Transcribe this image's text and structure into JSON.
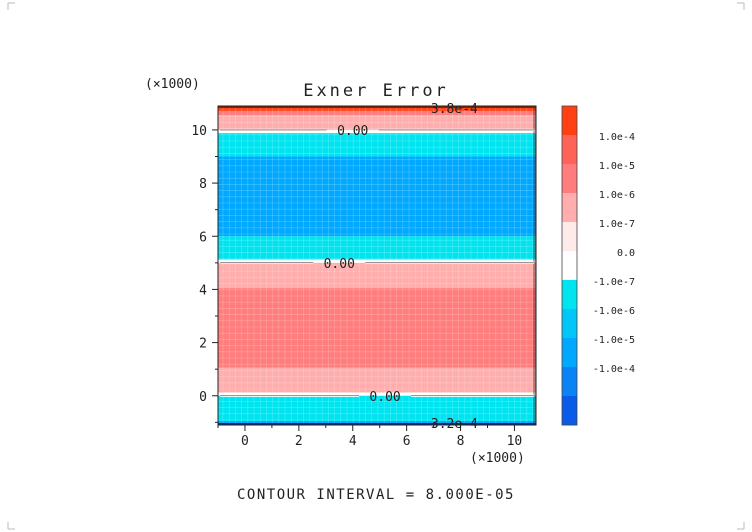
{
  "chart_data": {
    "type": "contour",
    "title": "Exner Error",
    "multiplier_y": "(×1000)",
    "multiplier_x": "(×1000)",
    "footer": "CONTOUR INTERVAL = 8.000E-05",
    "xlim": [
      -1.0,
      10.8
    ],
    "ylim": [
      -1.1,
      10.9
    ],
    "xticks": [
      0,
      2,
      4,
      6,
      8,
      10
    ],
    "yticks": [
      0,
      2,
      4,
      6,
      8,
      10
    ],
    "bands": [
      {
        "y0": 10.7,
        "y1": 10.9,
        "color": "#ff4013"
      },
      {
        "y0": 10.55,
        "y1": 10.7,
        "color": "#ff7d7c"
      },
      {
        "y0": 10.0,
        "y1": 10.55,
        "color": "#ffadad"
      },
      {
        "y0": 9.88,
        "y1": 10.0,
        "color": "#ffffff"
      },
      {
        "y0": 9.0,
        "y1": 9.88,
        "color": "#00e4f0"
      },
      {
        "y0": 6.0,
        "y1": 9.0,
        "color": "#00a9ff"
      },
      {
        "y0": 5.12,
        "y1": 6.0,
        "color": "#00e4f0"
      },
      {
        "y0": 5.0,
        "y1": 5.12,
        "color": "#ffffff"
      },
      {
        "y0": 4.05,
        "y1": 5.0,
        "color": "#ffadad"
      },
      {
        "y0": 1.05,
        "y1": 4.05,
        "color": "#ff7d7c"
      },
      {
        "y0": 0.12,
        "y1": 1.05,
        "color": "#ffadad"
      },
      {
        "y0": 0.0,
        "y1": 0.12,
        "color": "#ffffff"
      },
      {
        "y0": -0.95,
        "y1": 0.0,
        "color": "#00e4f0"
      },
      {
        "y0": -1.05,
        "y1": -0.95,
        "color": "#00a9ff"
      },
      {
        "y0": -1.1,
        "y1": -1.05,
        "color": "#0a5ce8"
      }
    ],
    "contour_lines": [
      {
        "y": 10.0,
        "label": "0.00",
        "label_x": 4.0
      },
      {
        "y": 5.0,
        "label": "0.00",
        "label_x": 3.5
      },
      {
        "y": 0.0,
        "label": "0.00",
        "label_x": 5.2
      }
    ],
    "edge_labels": [
      {
        "text": "3.8e-4",
        "y": 10.82,
        "x": 6.9
      },
      {
        "text": "3.2e-4",
        "y": -1.02,
        "x": 6.9
      }
    ],
    "colorbar": {
      "levels": [
        {
          "color": "#ff4013",
          "label": ""
        },
        {
          "color": "#ff6256",
          "label": "1.0e-4"
        },
        {
          "color": "#ff7d7c",
          "label": "1.0e-5"
        },
        {
          "color": "#ffadad",
          "label": "1.0e-6"
        },
        {
          "color": "#ffeaea",
          "label": "1.0e-7"
        },
        {
          "color": "#ffffff",
          "label": "0.0"
        },
        {
          "color": "#00e4f0",
          "label": "-1.0e-7"
        },
        {
          "color": "#00c7f8",
          "label": "-1.0e-6"
        },
        {
          "color": "#00a9ff",
          "label": "-1.0e-5"
        },
        {
          "color": "#0a84f5",
          "label": "-1.0e-4"
        },
        {
          "color": "#0a5ce8",
          "label": ""
        }
      ]
    }
  }
}
